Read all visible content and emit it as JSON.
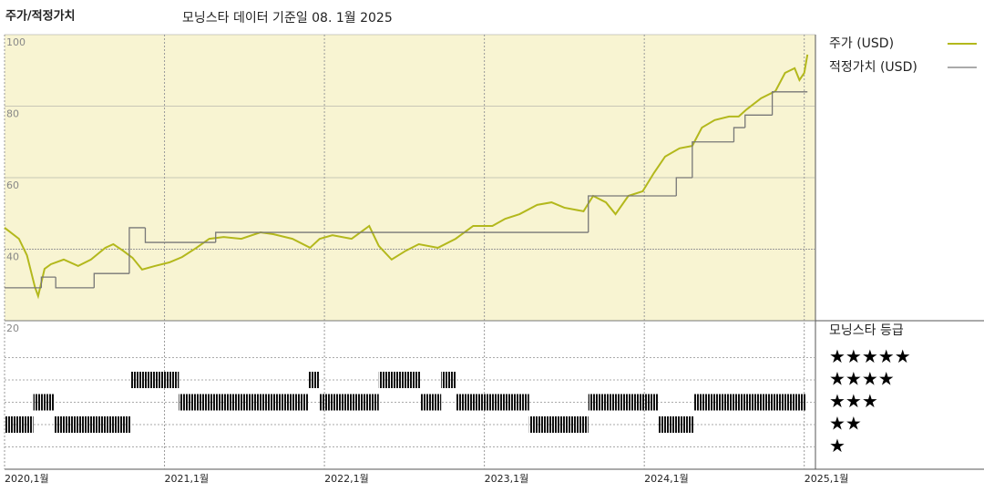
{
  "chart_data": [
    {
      "type": "line",
      "title": "주가/적정가치",
      "subtitle": "모닝스타 데이터 기준일 08. 1월 2025",
      "xlim": [
        2020,
        2025.07
      ],
      "ylim": [
        20,
        100
      ],
      "yticks": [
        20,
        40,
        60,
        80,
        100
      ],
      "grid": true,
      "xticks": [
        {
          "value": 2020,
          "label": "2020,1월"
        },
        {
          "value": 2021,
          "label": "2021,1월"
        },
        {
          "value": 2022,
          "label": "2022,1월"
        },
        {
          "value": 2023,
          "label": "2023,1월"
        },
        {
          "value": 2024,
          "label": "2024,1월"
        },
        {
          "value": 2025,
          "label": "2025,1월"
        }
      ],
      "series": [
        {
          "name": "주가 (USD)",
          "color": "#b3b81c",
          "x": [
            2020.0,
            2020.09,
            2020.14,
            2020.19,
            2020.21,
            2020.25,
            2020.29,
            2020.37,
            2020.46,
            2020.54,
            2020.63,
            2020.68,
            2020.74,
            2020.8,
            2020.86,
            2020.94,
            2021.03,
            2021.11,
            2021.2,
            2021.28,
            2021.37,
            2021.48,
            2021.6,
            2021.68,
            2021.8,
            2021.91,
            2021.97,
            2022.05,
            2022.17,
            2022.28,
            2022.34,
            2022.42,
            2022.51,
            2022.59,
            2022.71,
            2022.82,
            2022.93,
            2023.05,
            2023.13,
            2023.22,
            2023.33,
            2023.42,
            2023.5,
            2023.62,
            2023.68,
            2023.76,
            2023.82,
            2023.9,
            2023.99,
            2024.06,
            2024.13,
            2024.22,
            2024.3,
            2024.36,
            2024.44,
            2024.53,
            2024.59,
            2024.64,
            2024.73,
            2024.82,
            2024.88,
            2024.94,
            2024.97,
            2025.0,
            2025.02
          ],
          "values": [
            46,
            42.9,
            38.3,
            29.4,
            26.9,
            34.5,
            35.8,
            37.1,
            35.3,
            37.1,
            40.4,
            41.4,
            39.6,
            37.6,
            34.3,
            35.3,
            36.3,
            37.8,
            40.4,
            42.9,
            43.4,
            42.9,
            44.7,
            44.2,
            42.9,
            40.4,
            42.9,
            43.9,
            42.9,
            46.5,
            40.9,
            37.1,
            39.6,
            41.4,
            40.4,
            42.9,
            46.5,
            46.5,
            48.5,
            49.8,
            52.4,
            53.1,
            51.6,
            50.6,
            54.9,
            53.1,
            49.8,
            54.9,
            56.2,
            61.3,
            65.9,
            68.2,
            68.9,
            74,
            76.1,
            77.1,
            77.1,
            79.1,
            82.2,
            84.2,
            89.3,
            90.6,
            87.3,
            89.3,
            94.4
          ]
        },
        {
          "name": "적정가치 (USD)",
          "color": "#777777",
          "step": true,
          "x": [
            2020.0,
            2020.23,
            2020.32,
            2020.56,
            2020.78,
            2020.88,
            2021.32,
            2023.65,
            2024.2,
            2024.3,
            2024.56,
            2024.63,
            2024.8
          ],
          "values": [
            29.2,
            32.2,
            29.2,
            33.2,
            46,
            41.9,
            44.7,
            54.9,
            60,
            70,
            74,
            77.5,
            84
          ]
        }
      ]
    },
    {
      "type": "rating",
      "title": "모닝스타 등급",
      "categories": [
        "★★★★★",
        "★★★★",
        "★★★",
        "★★",
        "★"
      ],
      "levels": [
        5,
        4,
        3,
        2,
        1
      ],
      "color": "#111111",
      "segments": [
        {
          "start": 2020.0,
          "end": 2020.18,
          "rating": 2
        },
        {
          "start": 2020.18,
          "end": 2020.31,
          "rating": 3
        },
        {
          "start": 2020.31,
          "end": 2020.79,
          "rating": 2
        },
        {
          "start": 2020.79,
          "end": 2021.09,
          "rating": 4
        },
        {
          "start": 2021.09,
          "end": 2021.9,
          "rating": 3
        },
        {
          "start": 2021.9,
          "end": 2021.97,
          "rating": 4
        },
        {
          "start": 2021.97,
          "end": 2022.34,
          "rating": 3
        },
        {
          "start": 2022.34,
          "end": 2022.6,
          "rating": 4
        },
        {
          "start": 2022.6,
          "end": 2022.73,
          "rating": 3
        },
        {
          "start": 2022.73,
          "end": 2022.82,
          "rating": 4
        },
        {
          "start": 2022.82,
          "end": 2023.28,
          "rating": 3
        },
        {
          "start": 2023.28,
          "end": 2023.65,
          "rating": 2
        },
        {
          "start": 2023.65,
          "end": 2024.09,
          "rating": 3
        },
        {
          "start": 2024.09,
          "end": 2024.31,
          "rating": 2
        },
        {
          "start": 2024.31,
          "end": 2025.01,
          "rating": 3
        }
      ]
    }
  ]
}
